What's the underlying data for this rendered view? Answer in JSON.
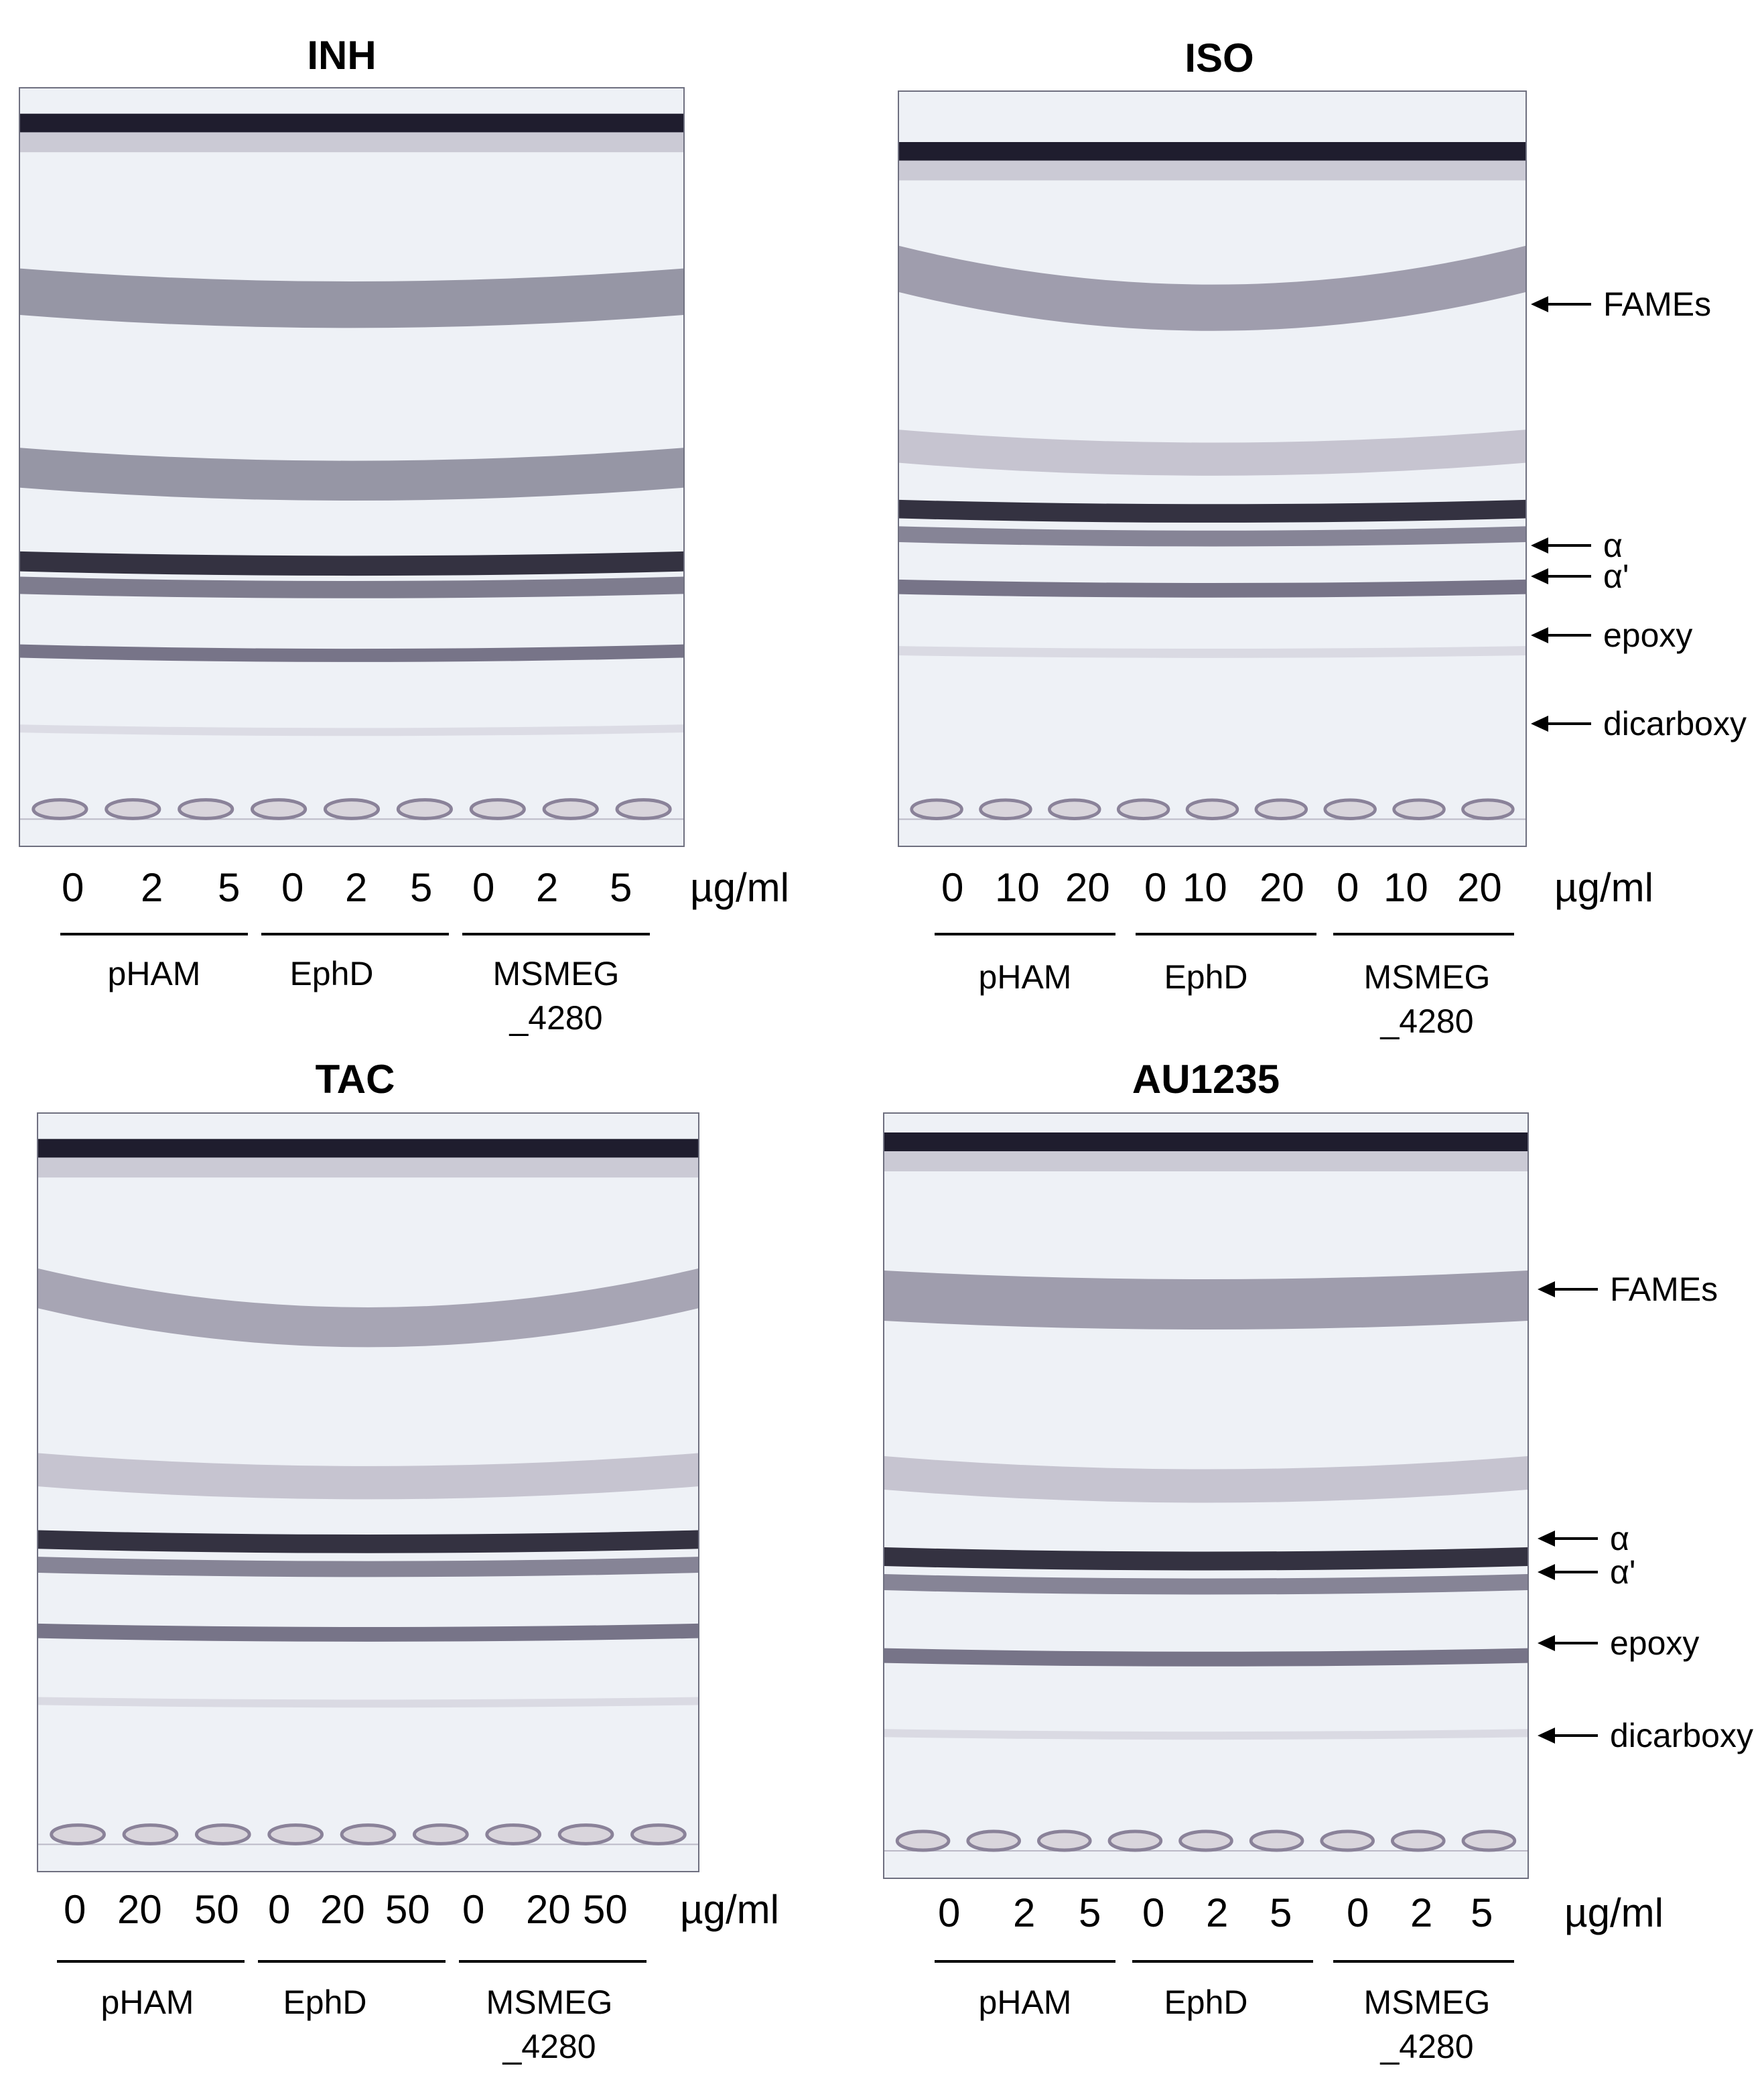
{
  "colors": {
    "gel_bg": "#eef1f6",
    "band_dark": "#1f1d2e",
    "band_mid": "#4f4a63",
    "band_light": "#8a8299",
    "frame": "#6f7080"
  },
  "panels": [
    {
      "title": "INH",
      "concentrations": [
        "0",
        "2",
        "5",
        "0",
        "2",
        "5",
        "0",
        "2",
        "5"
      ],
      "unit": "µg/ml",
      "groups": [
        "pHAM",
        "EphD",
        "MSMEG\n_4280"
      ],
      "markers": []
    },
    {
      "title": "ISO",
      "concentrations": [
        "0",
        "10",
        "20",
        "0",
        "10",
        "20",
        "0",
        "10",
        "20"
      ],
      "unit": "µg/ml",
      "groups": [
        "pHAM",
        "EphD",
        "MSMEG\n_4280"
      ],
      "markers": [
        "FAMEs",
        "α",
        "α'",
        "epoxy",
        "dicarboxy"
      ]
    },
    {
      "title": "TAC",
      "concentrations": [
        "0",
        "20",
        "50",
        "0",
        "20",
        "50",
        "0",
        "20",
        "50"
      ],
      "unit": "µg/ml",
      "groups": [
        "pHAM",
        "EphD",
        "MSMEG\n_4280"
      ],
      "markers": []
    },
    {
      "title": "AU1235",
      "concentrations": [
        "0",
        "2",
        "5",
        "0",
        "2",
        "5",
        "0",
        "2",
        "5"
      ],
      "unit": "µg/ml",
      "groups": [
        "pHAM",
        "EphD",
        "MSMEG\n_4280"
      ],
      "markers": [
        "FAMEs",
        "α",
        "α'",
        "epoxy",
        "dicarboxy"
      ]
    }
  ]
}
